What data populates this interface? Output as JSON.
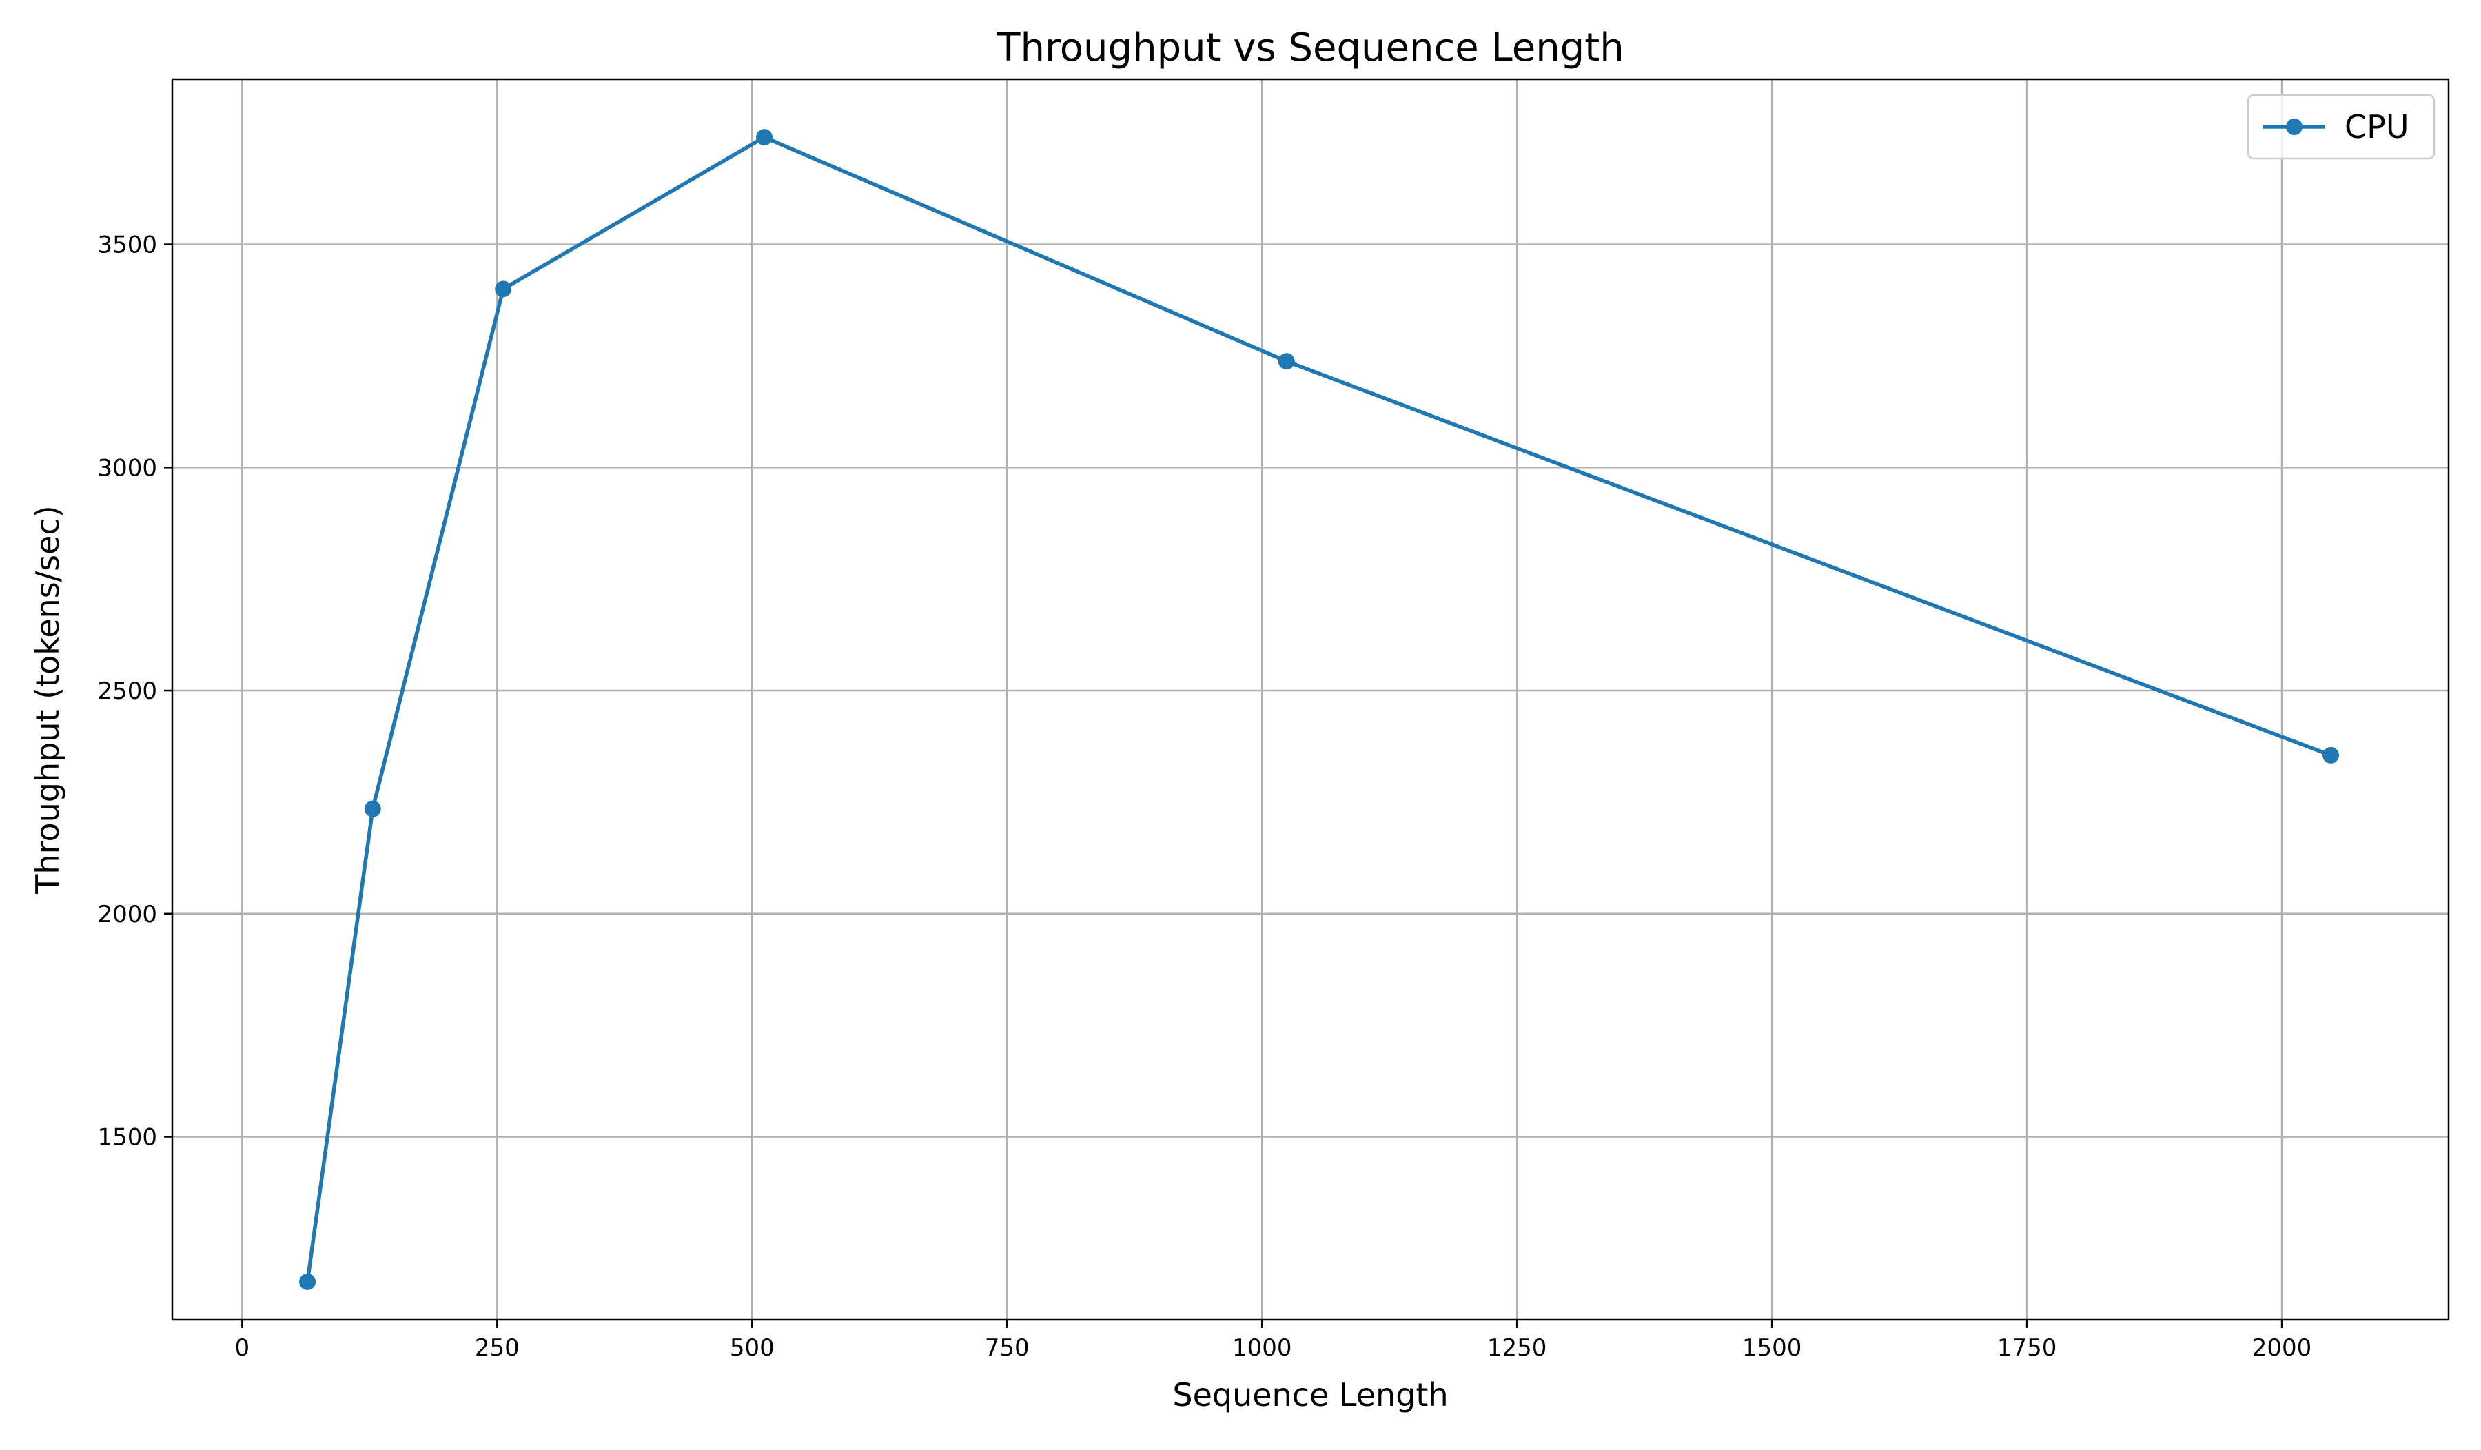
{
  "chart_data": {
    "type": "line",
    "title": "Throughput vs Sequence Length",
    "xlabel": "Sequence Length",
    "ylabel": "Throughput (tokens/sec)",
    "xlim": [
      -68.5,
      2163.5
    ],
    "ylim": [
      1090,
      3870
    ],
    "xticks": [
      0,
      250,
      500,
      750,
      1000,
      1250,
      1500,
      1750,
      2000
    ],
    "yticks": [
      1500,
      2000,
      2500,
      3000,
      3500
    ],
    "grid": true,
    "legend_position": "top-right",
    "series": [
      {
        "name": "CPU",
        "color": "#1f77b4",
        "marker": "circle",
        "x": [
          64,
          128,
          256,
          512,
          1024,
          2048
        ],
        "y": [
          1175,
          2235,
          3400,
          3740,
          3238,
          2355
        ]
      }
    ]
  }
}
